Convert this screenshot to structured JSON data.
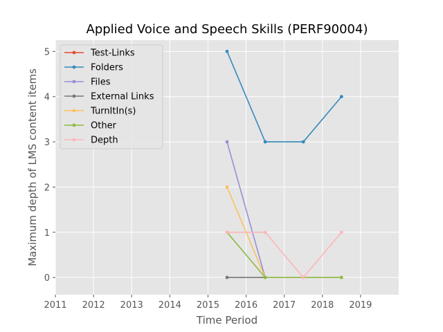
{
  "chart_data": {
    "type": "line",
    "title": "Applied Voice and Speech Skills (PERF90004)",
    "xlabel": "Time Period",
    "ylabel": "Maximum depth of LMS content items",
    "xlim": [
      2011,
      2020
    ],
    "ylim": [
      -0.38,
      5.25
    ],
    "xticks": [
      2011,
      2012,
      2013,
      2014,
      2015,
      2016,
      2017,
      2018,
      2019
    ],
    "yticks": [
      0,
      1,
      2,
      3,
      4,
      5
    ],
    "grid": true,
    "legend_position": "top-left",
    "series": [
      {
        "name": "Test-Links",
        "color": "#E24A33",
        "x": [],
        "y": []
      },
      {
        "name": "Folders",
        "color": "#348ABD",
        "x": [
          2015.5,
          2016.5,
          2017.5,
          2018.5
        ],
        "y": [
          5,
          3,
          3,
          4
        ]
      },
      {
        "name": "Files",
        "color": "#988ED5",
        "x": [
          2015.5,
          2016.5
        ],
        "y": [
          3,
          0
        ]
      },
      {
        "name": "External Links",
        "color": "#777777",
        "x": [
          2015.5,
          2016.5
        ],
        "y": [
          0,
          0
        ]
      },
      {
        "name": "TurnItIn(s)",
        "color": "#FBC15E",
        "x": [
          2015.5,
          2016.5,
          2017.5,
          2018.5
        ],
        "y": [
          2,
          0,
          0,
          0
        ]
      },
      {
        "name": "Other",
        "color": "#8EBA42",
        "x": [
          2015.5,
          2016.5,
          2017.5,
          2018.5
        ],
        "y": [
          1,
          0,
          0,
          0
        ]
      },
      {
        "name": "Depth",
        "color": "#FFB5B8",
        "x": [
          2015.5,
          2016.5,
          2017.5,
          2018.5
        ],
        "y": [
          1,
          1,
          0,
          1
        ]
      }
    ]
  }
}
